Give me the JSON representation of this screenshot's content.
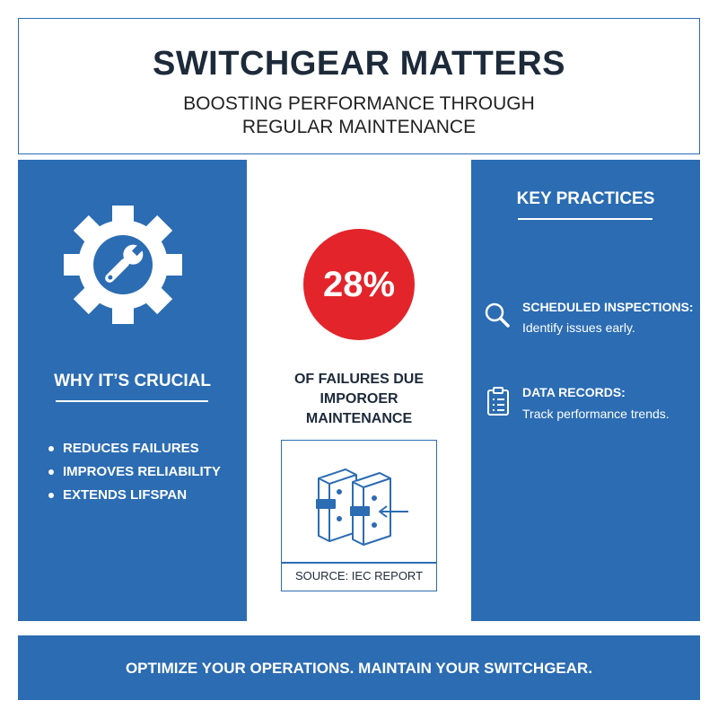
{
  "header": {
    "title": "SWITCHGEAR MATTERS",
    "subtitle_lines": [
      "BOOSTING PERFORMANCE THROUGH",
      "REGULAR MAINTENANCE"
    ]
  },
  "left": {
    "heading": "WHY IT’S CRUCIAL",
    "items": [
      "REDUCES FAILURES",
      "IMPROVES RELIABILITY",
      "EXTENDS LIFSPAN"
    ]
  },
  "center": {
    "stat": "28%",
    "caption_lines": [
      "OF FAILURES DUE",
      "IMPOROER",
      "MAINTENANCE"
    ],
    "source": "SOURCE: IEC REPORT"
  },
  "right": {
    "heading": "KEY PRACTICES",
    "practices": [
      {
        "title": "SCHEDULED INSPECTIONS:",
        "text": "Identify issues early."
      },
      {
        "title": "DATA RECORDS:",
        "text": "Track performance trends."
      }
    ]
  },
  "footer": {
    "text": "OPTIMIZE YOUR OPERATIONS. MAINTAIN YOUR SWITCHGEAR."
  }
}
